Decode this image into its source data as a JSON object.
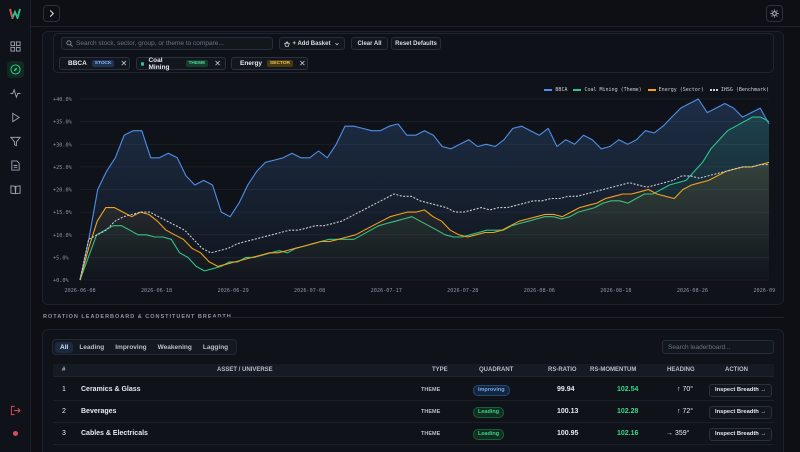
{
  "colors": {
    "bbca": "#4f8fe8",
    "coal": "#2bc48a",
    "energy": "#f0a21c",
    "benchmark": "#c8ccd4",
    "active": "#34d98f",
    "logout": "#e04b5c"
  },
  "sidebar": {
    "items": [
      {
        "icon": "grid-icon"
      },
      {
        "icon": "compass-icon",
        "active": true
      },
      {
        "icon": "activity-icon"
      },
      {
        "icon": "play-icon"
      },
      {
        "icon": "filter-icon"
      },
      {
        "icon": "document-icon"
      },
      {
        "icon": "book-icon"
      }
    ],
    "logout_icon": "logout-icon"
  },
  "topbar": {
    "expand_icon": "chevron-right-icon",
    "theme_icon": "sun-icon"
  },
  "compare": {
    "search_placeholder": "Search stock, sector, group, or theme to compare...",
    "add_basket_label": "+ Add Basket",
    "clear_all_label": "Clear All",
    "reset_label": "Reset Defaults",
    "chips": [
      {
        "name": "BBCA",
        "tag": "STOCK"
      },
      {
        "name": "Coal Mining",
        "tag": "THEME"
      },
      {
        "name": "Energy",
        "tag": "SECTOR"
      }
    ]
  },
  "chart_data": {
    "type": "line",
    "legend": [
      "BBCA",
      "Coal Mining (Theme)",
      "Energy (Sector)",
      "IHSG (Benchmark)"
    ],
    "legend_position": "top-right",
    "y_ticks": [
      "+0.0%",
      "+5.0%",
      "+10.0%",
      "+15.0%",
      "+20.0%",
      "+25.0%",
      "+30.0%",
      "+35.0%",
      "+40.0%"
    ],
    "x_ticks": [
      "2026-06-08",
      "2026-06-18",
      "2026-06-29",
      "2026-07-08",
      "2026-07-17",
      "2026-07-28",
      "2026-08-06",
      "2026-08-18",
      "2026-08-26",
      "2026-09-08"
    ],
    "ylim": [
      0,
      40
    ],
    "grid": true,
    "series": [
      {
        "name": "BBCA",
        "values": [
          0,
          9,
          20,
          24,
          27,
          32,
          33,
          33,
          27,
          27,
          28,
          27,
          23,
          21,
          22,
          21,
          15,
          14,
          17,
          21,
          24,
          26,
          26.5,
          27,
          28,
          27,
          27,
          28.5,
          27,
          30,
          34,
          34,
          33.5,
          33,
          33,
          34,
          34.5,
          32,
          32,
          33,
          32,
          29.5,
          29,
          30,
          31,
          29.5,
          30,
          29.5,
          31,
          33.5,
          34,
          33,
          32,
          33.5,
          29.5,
          31,
          30,
          32,
          31,
          29,
          29.5,
          31,
          30,
          31,
          33,
          32.5,
          34,
          36,
          38,
          39,
          40,
          37,
          38,
          39,
          38,
          36,
          37,
          38,
          34.5
        ]
      },
      {
        "name": "Coal Mining (Theme)",
        "values": [
          0,
          5,
          10,
          11,
          12,
          12,
          11,
          10,
          10,
          9.5,
          9.5,
          9,
          6,
          5,
          3,
          2,
          2.5,
          3,
          4,
          4,
          5,
          5,
          5.5,
          6,
          6.5,
          6,
          7,
          7.5,
          8,
          8.5,
          9,
          9,
          9,
          9,
          10,
          11,
          12,
          12.5,
          13,
          13.5,
          14,
          13,
          12,
          11,
          10,
          9.5,
          9.5,
          10,
          10.5,
          11,
          11,
          11,
          12,
          12.5,
          13,
          13.5,
          14,
          14,
          13.5,
          14,
          15,
          15.5,
          16,
          17,
          17.5,
          17.5,
          17,
          18,
          19,
          19,
          20,
          21,
          21.5,
          22,
          24,
          26,
          29,
          31,
          33,
          34,
          35,
          36,
          36,
          35
        ]
      },
      {
        "name": "Energy (Sector)",
        "values": [
          0,
          7,
          13,
          16,
          16,
          15,
          14,
          15,
          14.5,
          13,
          11,
          10,
          9,
          7,
          6,
          4,
          3,
          3.5,
          4,
          4.5,
          5,
          5.5,
          6,
          6,
          6.5,
          7,
          7.5,
          8,
          8.5,
          8.5,
          9,
          9.5,
          10,
          11,
          12,
          13,
          14,
          14.5,
          15,
          15,
          15.5,
          14,
          13,
          11,
          10,
          9.5,
          10,
          10.5,
          10.5,
          11,
          12,
          13,
          13.5,
          14,
          14.5,
          14.5,
          14,
          15,
          16,
          16.5,
          17,
          18,
          18.5,
          19,
          19,
          19.5,
          20,
          19,
          18.5,
          18,
          20,
          21,
          21.5,
          22,
          23,
          24,
          24.5,
          25,
          25,
          25.5,
          26
        ]
      },
      {
        "name": "IHSG (Benchmark)",
        "values": [
          0,
          9,
          10,
          11,
          13,
          14,
          14.5,
          15,
          15,
          14,
          13,
          12,
          11,
          9,
          7,
          6,
          6.5,
          7,
          8,
          8.5,
          9,
          9.5,
          10,
          10.5,
          11,
          11,
          11.5,
          12,
          12,
          12.5,
          13,
          14,
          15,
          16,
          17,
          18,
          19,
          18.5,
          18.5,
          17.5,
          17,
          16.5,
          16,
          15,
          15,
          15.5,
          16,
          15.5,
          16,
          16,
          16.5,
          17,
          17.5,
          17.5,
          18,
          18,
          18.5,
          18.5,
          19,
          19.5,
          20,
          20.5,
          21,
          21.5,
          21,
          20.5,
          21,
          21.5,
          22,
          23,
          23,
          22.5,
          23,
          23.5,
          24,
          24.5,
          25,
          25,
          25.5,
          25.5
        ]
      }
    ]
  },
  "leaderboard": {
    "section_title": "ROTATION LEADERBOARD & CONSTITUENT BREADTH",
    "tabs": [
      "All",
      "Leading",
      "Improving",
      "Weakening",
      "Lagging"
    ],
    "search_placeholder": "Search leaderboard...",
    "columns": [
      "#",
      "ASSET / UNIVERSE",
      "TYPE",
      "QUADRANT",
      "RS-RATIO",
      "RS-MOMENTUM",
      "HEADING",
      "ACTION"
    ],
    "rows": [
      {
        "rank": "1",
        "name": "Ceramics & Glass",
        "type": "THEME",
        "quadrant": "Improving",
        "ratio": "99.94",
        "momentum": "102.54",
        "heading": "↑ 70°",
        "action": "Inspect Breadth →"
      },
      {
        "rank": "2",
        "name": "Beverages",
        "type": "THEME",
        "quadrant": "Leading",
        "ratio": "100.13",
        "momentum": "102.28",
        "heading": "↑ 72°",
        "action": "Inspect Breadth →"
      },
      {
        "rank": "3",
        "name": "Cables & Electricals",
        "type": "THEME",
        "quadrant": "Leading",
        "ratio": "100.95",
        "momentum": "102.16",
        "heading": "→ 359°",
        "action": "Inspect Breadth →"
      }
    ]
  }
}
